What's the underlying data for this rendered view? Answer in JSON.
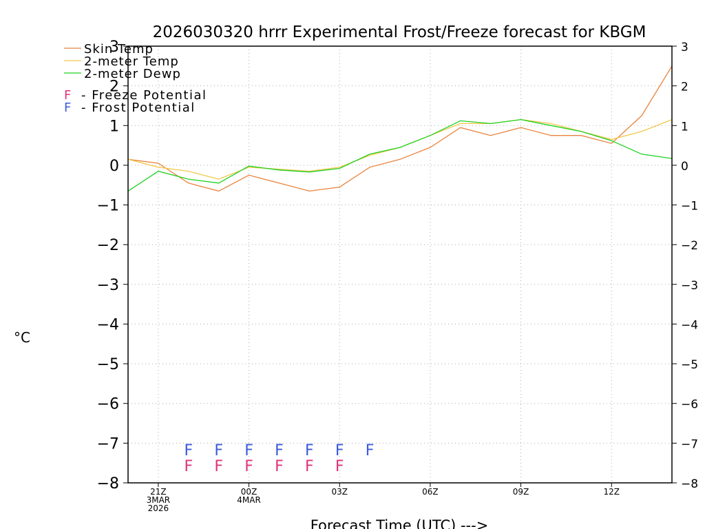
{
  "chart_data": {
    "type": "line",
    "title": "2026030320 hrrr Experimental Frost/Freeze forecast for KBGM",
    "xlabel": "Forecast Time (UTC) --->",
    "ylabel": "°C",
    "ylim": [
      -8,
      3
    ],
    "xlim": [
      20,
      38
    ],
    "yticks": [
      -8,
      -7,
      -6,
      -5,
      -4,
      -3,
      -2,
      -1,
      0,
      1,
      2,
      3
    ],
    "ytick_labels": [
      "−8",
      "−7",
      "−6",
      "−5",
      "−4",
      "−3",
      "−2",
      "−1",
      "0",
      "1",
      "2",
      "3"
    ],
    "xticks": [
      {
        "x": 21,
        "lines": [
          "21Z",
          "3MAR",
          "2026"
        ]
      },
      {
        "x": 24,
        "lines": [
          "00Z",
          "4MAR"
        ]
      },
      {
        "x": 27,
        "lines": [
          "03Z"
        ]
      },
      {
        "x": 30,
        "lines": [
          "06Z"
        ]
      },
      {
        "x": 33,
        "lines": [
          "09Z"
        ]
      },
      {
        "x": 36,
        "lines": [
          "12Z"
        ]
      }
    ],
    "x": [
      20,
      21,
      22,
      23,
      24,
      25,
      26,
      27,
      28,
      29,
      30,
      31,
      32,
      33,
      34,
      35,
      36,
      37,
      38
    ],
    "series": [
      {
        "name": "Skin Temp",
        "color": "#e8823c",
        "values": [
          0.15,
          0.05,
          -0.45,
          -0.65,
          -0.25,
          -0.45,
          -0.65,
          -0.55,
          -0.05,
          0.15,
          0.45,
          0.95,
          0.75,
          0.95,
          0.75,
          0.75,
          0.55,
          1.25,
          2.5
        ]
      },
      {
        "name": "2-meter Temp",
        "color": "#f0c84a",
        "values": [
          0.15,
          -0.05,
          -0.15,
          -0.35,
          -0.05,
          -0.1,
          -0.15,
          -0.05,
          0.25,
          0.45,
          0.75,
          1.05,
          1.05,
          1.15,
          1.05,
          0.85,
          0.65,
          0.85,
          1.15
        ]
      },
      {
        "name": "2-meter Dewp",
        "color": "#1fd01f",
        "values": [
          -0.65,
          -0.15,
          -0.35,
          -0.45,
          -0.02,
          -0.12,
          -0.17,
          -0.08,
          0.28,
          0.45,
          0.75,
          1.12,
          1.05,
          1.15,
          1.0,
          0.85,
          0.62,
          0.28,
          0.17
        ]
      }
    ],
    "legend": {
      "position": "top-left",
      "potential_symbol": "F",
      "freeze_label": "- Freeze Potential",
      "frost_label": "- Frost Potential",
      "freeze_color": "#e0337a",
      "frost_color": "#3a5adc"
    },
    "frost_potential_hours": [
      22,
      23,
      24,
      25,
      26,
      27,
      28
    ],
    "freeze_potential_hours": [
      22,
      23,
      24,
      25,
      26,
      27
    ],
    "frost_marker_value": -7.15,
    "freeze_marker_value": -7.55,
    "grid": true
  }
}
